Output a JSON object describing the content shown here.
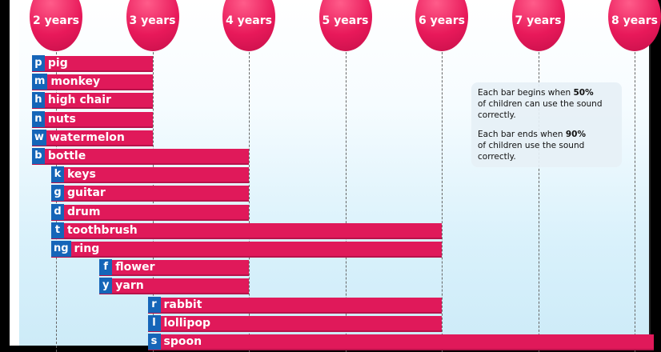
{
  "chart_data": {
    "type": "bar",
    "orientation": "horizontal",
    "x_unit": "years",
    "x_ticks": [
      {
        "value": 2,
        "label": "2 years"
      },
      {
        "value": 3,
        "label": "3 years"
      },
      {
        "value": 4,
        "label": "4 years"
      },
      {
        "value": 5,
        "label": "5 years"
      },
      {
        "value": 6,
        "label": "6 years"
      },
      {
        "value": 7,
        "label": "7 years"
      },
      {
        "value": 8,
        "label": "8 years"
      }
    ],
    "xlim": [
      1.75,
      8.4
    ],
    "grid": "vertical dashed",
    "bars": [
      {
        "sound": "p",
        "word": "pig",
        "start": 1.75,
        "end": 3
      },
      {
        "sound": "m",
        "word": "monkey",
        "start": 1.75,
        "end": 3
      },
      {
        "sound": "h",
        "word": "high chair",
        "start": 1.75,
        "end": 3
      },
      {
        "sound": "n",
        "word": "nuts",
        "start": 1.75,
        "end": 3
      },
      {
        "sound": "w",
        "word": "watermelon",
        "start": 1.75,
        "end": 3
      },
      {
        "sound": "b",
        "word": "bottle",
        "start": 1.75,
        "end": 4
      },
      {
        "sound": "k",
        "word": "keys",
        "start": 1.95,
        "end": 4
      },
      {
        "sound": "g",
        "word": "guitar",
        "start": 1.95,
        "end": 4
      },
      {
        "sound": "d",
        "word": "drum",
        "start": 1.95,
        "end": 4
      },
      {
        "sound": "t",
        "word": "toothbrush",
        "start": 1.95,
        "end": 6
      },
      {
        "sound": "ng",
        "word": "ring",
        "start": 1.95,
        "end": 6
      },
      {
        "sound": "f",
        "word": "flower",
        "start": 2.5,
        "end": 4
      },
      {
        "sound": "y",
        "word": "yarn",
        "start": 2.5,
        "end": 4
      },
      {
        "sound": "r",
        "word": "rabbit",
        "start": 3,
        "end": 6
      },
      {
        "sound": "l",
        "word": "lollipop",
        "start": 3,
        "end": 6
      },
      {
        "sound": "s",
        "word": "spoon",
        "start": 3,
        "end": 8.2
      }
    ]
  },
  "note": {
    "line1_prefix": "Each bar begins when ",
    "line1_bold": "50%",
    "line1_suffix": "of children can use the sound correctly.",
    "line2_prefix": "Each bar ends when ",
    "line2_bold": "90%",
    "line2_suffix": "of children use the sound correctly."
  },
  "colors": {
    "bar": "#e0195a",
    "sound_tag": "#1565b8",
    "circle": "#e8195a"
  }
}
